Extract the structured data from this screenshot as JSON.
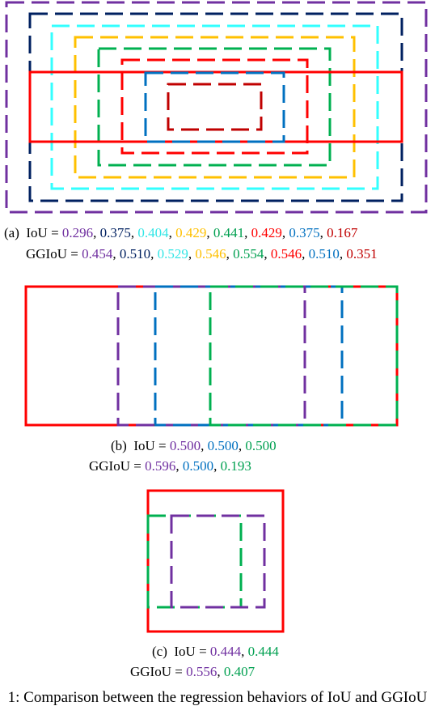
{
  "panels": [
    {
      "label": "(a)",
      "separator": ",",
      "lines": [
        {
          "name": "IoU =",
          "values": [
            {
              "text": "0.296",
              "color": "#7030a0"
            },
            {
              "text": "0.375",
              "color": "#002060"
            },
            {
              "text": "0.404",
              "color": "#33e6e6"
            },
            {
              "text": "0.429",
              "color": "#ffc000"
            },
            {
              "text": "0.441",
              "color": "#00a050"
            },
            {
              "text": "0.429",
              "color": "#ff0000"
            },
            {
              "text": "0.375",
              "color": "#0070c0"
            },
            {
              "text": "0.167",
              "color": "#c00000"
            }
          ]
        },
        {
          "name": "GGIoU =",
          "values": [
            {
              "text": "0.454",
              "color": "#7030a0"
            },
            {
              "text": "0.510",
              "color": "#002060"
            },
            {
              "text": "0.529",
              "color": "#33e6e6"
            },
            {
              "text": "0.546",
              "color": "#ffc000"
            },
            {
              "text": "0.554",
              "color": "#00a050"
            },
            {
              "text": "0.546",
              "color": "#ff0000"
            },
            {
              "text": "0.510",
              "color": "#0070c0"
            },
            {
              "text": "0.351",
              "color": "#c00000"
            }
          ]
        }
      ]
    },
    {
      "label": "(b)",
      "separator": ",",
      "lines": [
        {
          "name": "IoU =",
          "values": [
            {
              "text": "0.500",
              "color": "#7030a0"
            },
            {
              "text": "0.500",
              "color": "#0070c0"
            },
            {
              "text": "0.500",
              "color": "#00a050"
            }
          ]
        },
        {
          "name": "GGIoU =",
          "values": [
            {
              "text": "0.596",
              "color": "#7030a0"
            },
            {
              "text": "0.500",
              "color": "#0070c0"
            },
            {
              "text": "0.193",
              "color": "#00a050"
            }
          ]
        }
      ]
    },
    {
      "label": "(c)",
      "separator": ",",
      "lines": [
        {
          "name": "IoU =",
          "values": [
            {
              "text": "0.444",
              "color": "#7030a0"
            },
            {
              "text": "0.444",
              "color": "#00a050"
            }
          ]
        },
        {
          "name": "GGIoU =",
          "values": [
            {
              "text": "0.556",
              "color": "#7030a0"
            },
            {
              "text": "0.407",
              "color": "#00a050"
            }
          ]
        }
      ]
    }
  ],
  "caption": "1: Comparison between the regression behaviors of IoU and GGIoU"
}
